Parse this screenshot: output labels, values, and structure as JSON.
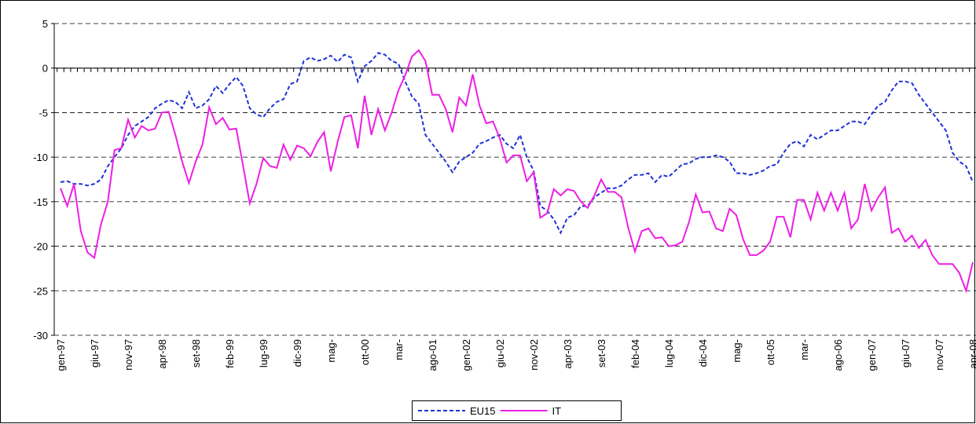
{
  "chart_data": {
    "type": "line",
    "categories": [
      "gen-97",
      null,
      null,
      null,
      null,
      "giu-97",
      null,
      null,
      null,
      null,
      "nov-97",
      null,
      null,
      null,
      null,
      "apr-98",
      null,
      null,
      null,
      null,
      "set-98",
      null,
      null,
      null,
      null,
      "feb-99",
      null,
      null,
      null,
      null,
      "lug-99",
      null,
      null,
      null,
      null,
      "dic-99",
      null,
      null,
      null,
      null,
      "mag-",
      null,
      null,
      null,
      null,
      "ott-00",
      null,
      null,
      null,
      null,
      "mar-",
      null,
      null,
      null,
      null,
      "ago-01",
      null,
      null,
      null,
      null,
      "gen-02",
      null,
      null,
      null,
      null,
      "giu-02",
      null,
      null,
      null,
      null,
      "nov-02",
      null,
      null,
      null,
      null,
      "apr-03",
      null,
      null,
      null,
      null,
      "set-03",
      null,
      null,
      null,
      null,
      "feb-04",
      null,
      null,
      null,
      null,
      "lug-04",
      null,
      null,
      null,
      null,
      "dic-04",
      null,
      null,
      null,
      null,
      "mag-",
      null,
      null,
      null,
      null,
      "ott-05",
      null,
      null,
      null,
      null,
      "mar-",
      null,
      null,
      null,
      null,
      "ago-06",
      null,
      null,
      null,
      null,
      "gen-07",
      null,
      null,
      null,
      null,
      "giu-07",
      null,
      null,
      null,
      null,
      "nov-07",
      null,
      null,
      null,
      null,
      "apr-08"
    ],
    "series": [
      {
        "name": "EU15",
        "color": "#1f32d6",
        "dashed": true,
        "values": [
          -12.8,
          -12.7,
          -13,
          -13,
          -13.2,
          -13,
          -12.5,
          -11,
          -10,
          -9,
          -7.5,
          -6.5,
          -6,
          -5.5,
          -4.5,
          -4,
          -3.6,
          -3.8,
          -4.5,
          -2.7,
          -4.5,
          -4.2,
          -3.5,
          -2,
          -2.8,
          -1.8,
          -1,
          -2,
          -4.5,
          -5.2,
          -5.5,
          -4.5,
          -3.8,
          -3.5,
          -1.8,
          -1.5,
          0.8,
          1.2,
          0.8,
          1,
          1.4,
          0.7,
          1.5,
          1.2,
          -1.5,
          0.2,
          0.8,
          1.7,
          1.5,
          0.8,
          0.5,
          -1.5,
          -3.2,
          -4,
          -7.5,
          -8.5,
          -9.5,
          -10.5,
          -11.7,
          -10.5,
          -10,
          -9.5,
          -8.5,
          -8.2,
          -7.8,
          -7.5,
          -8.5,
          -9,
          -7.5,
          -10,
          -11.5,
          -15.5,
          -16,
          -17,
          -18.5,
          -16.8,
          -16.5,
          -15.5,
          -15.5,
          -14.5,
          -14,
          -13.5,
          -13.5,
          -13.2,
          -12.5,
          -12,
          -12,
          -11.8,
          -12.8,
          -12,
          -12.2,
          -11.5,
          -10.8,
          -10.7,
          -10.2,
          -10,
          -10,
          -9.8,
          -10,
          -10.5,
          -11.8,
          -11.8,
          -12,
          -11.8,
          -11.5,
          -11,
          -10.8,
          -9.5,
          -8.5,
          -8.2,
          -8.8,
          -7.5,
          -8,
          -7.5,
          -7,
          -7,
          -6.5,
          -6,
          -6,
          -6.3,
          -5.2,
          -4.2,
          -3.8,
          -2.5,
          -1.5,
          -1.5,
          -1.7,
          -3,
          -4,
          -5,
          -6,
          -7,
          -9.5,
          -10.5,
          -11,
          -12.8
        ]
      },
      {
        "name": "IT",
        "color": "#ee1ee6",
        "dashed": false,
        "values": [
          -13.5,
          -15.5,
          -13,
          -18.3,
          -20.7,
          -21.3,
          -17.5,
          -15,
          -9.2,
          -9,
          -5.8,
          -7.8,
          -6.5,
          -7,
          -6.8,
          -5,
          -4.9,
          -7.5,
          -10.5,
          -12.9,
          -10.5,
          -8.6,
          -4.4,
          -6.3,
          -5.6,
          -6.9,
          -6.8,
          -10.9,
          -15.2,
          -13,
          -10.1,
          -11,
          -11.2,
          -8.6,
          -10.3,
          -8.7,
          -9,
          -9.9,
          -8.3,
          -7.2,
          -11.6,
          -8.3,
          -5.5,
          -5.3,
          -9,
          -3.1,
          -7.5,
          -4.6,
          -7,
          -5,
          -2.5,
          -0.8,
          1.3,
          2,
          0.8,
          -3,
          -3,
          -4.6,
          -7.2,
          -3.3,
          -4.2,
          -0.7,
          -4.2,
          -6.2,
          -6,
          -7.9,
          -10.6,
          -9.8,
          -9.8,
          -12.7,
          -11.7,
          -16.8,
          -16.3,
          -13.6,
          -14.3,
          -13.6,
          -13.8,
          -15,
          -15.7,
          -14.3,
          -12.5,
          -13.9,
          -13.9,
          -14.5,
          -17.9,
          -20.6,
          -18.3,
          -18,
          -19.1,
          -19,
          -20,
          -19.9,
          -19.5,
          -17.3,
          -14.2,
          -16.2,
          -16.1,
          -18,
          -18.3,
          -15.8,
          -16.5,
          -19.2,
          -21,
          -21,
          -20.5,
          -19.5,
          -16.7,
          -16.7,
          -19,
          -14.8,
          -14.8,
          -17,
          -14,
          -16,
          -14,
          -16,
          -14,
          -18,
          -17,
          -13,
          -16,
          -14.5,
          -13.4,
          -18.5,
          -18,
          -19.5,
          -18.8,
          -20.2,
          -19.3,
          -21,
          -22,
          -22,
          -22,
          -23,
          -25,
          -21.8
        ]
      }
    ],
    "ylim": [
      -30,
      5
    ],
    "yticks": [
      5,
      0,
      -5,
      -10,
      -15,
      -20,
      -25,
      -30
    ],
    "grid": true,
    "legend": "bottom"
  }
}
